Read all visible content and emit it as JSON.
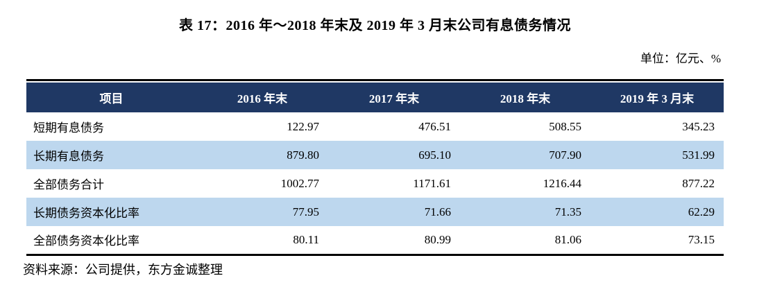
{
  "title": "表 17：2016 年～2018 年末及 2019 年 3 月末公司有息债务情况",
  "unit_label": "单位：亿元、%",
  "table": {
    "columns": [
      "项目",
      "2016 年末",
      "2017 年末",
      "2018 年末",
      "2019 年 3 月末"
    ],
    "rows": [
      {
        "label": "短期有息债务",
        "values": [
          "122.97",
          "476.51",
          "508.55",
          "345.23"
        ]
      },
      {
        "label": "长期有息债务",
        "values": [
          "879.80",
          "695.10",
          "707.90",
          "531.99"
        ]
      },
      {
        "label": "全部债务合计",
        "values": [
          "1002.77",
          "1171.61",
          "1216.44",
          "877.22"
        ]
      },
      {
        "label": "长期债务资本化比率",
        "values": [
          "77.95",
          "71.66",
          "71.35",
          "62.29"
        ]
      },
      {
        "label": "全部债务资本化比率",
        "values": [
          "80.11",
          "80.99",
          "81.06",
          "73.15"
        ]
      }
    ]
  },
  "source_note": "资料来源：公司提供，东方金诚整理",
  "colors": {
    "header_bg": "#1F3864",
    "header_text": "#FFFFFF",
    "row_alt_bg": "#BDD7EE",
    "border": "#000000"
  }
}
